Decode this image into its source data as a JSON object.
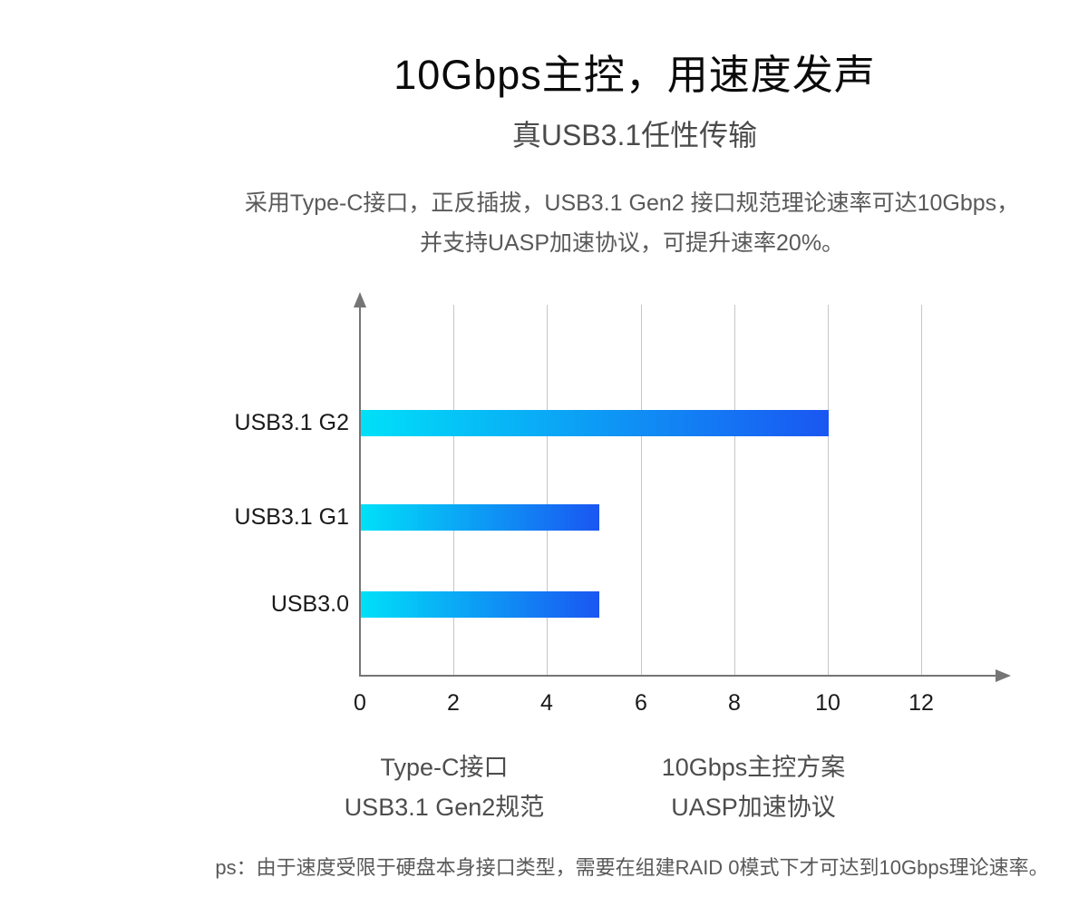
{
  "page": {
    "title": "10Gbps主控，用速度发声",
    "subtitle": "真USB3.1任性传输",
    "description_line1": "采用Type-C接口，正反插拔，USB3.1 Gen2 接口规范理论速率可达10Gbps，",
    "description_line2": "并支持UASP加速协议，可提升速率20%。",
    "footnote": "ps：由于速度受限于硬盘本身接口类型，需要在组建RAID 0模式下才可达到10Gbps理论速率。"
  },
  "captions": [
    {
      "line1": "Type-C接口",
      "line2": "USB3.1 Gen2规范"
    },
    {
      "line1": "10Gbps主控方案",
      "line2": "UASP加速协议"
    }
  ],
  "chart_data": {
    "type": "bar",
    "orientation": "horizontal",
    "categories": [
      "USB3.1 G2",
      "USB3.1 G1",
      "USB3.0"
    ],
    "values": [
      10,
      5.1,
      5.1
    ],
    "x_ticks": [
      0,
      2,
      4,
      6,
      8,
      10,
      12
    ],
    "xlim": [
      0,
      12
    ],
    "unit": "Gbps",
    "grid": true,
    "legend": false,
    "title": "",
    "xlabel": "",
    "ylabel": "",
    "colors": {
      "bar_gradient_start": "#00e0f8",
      "bar_gradient_end": "#1a56f2",
      "grid_color": "#c6c6c6",
      "axis_color": "#757575",
      "tick_text": "#1a1a1a"
    }
  }
}
